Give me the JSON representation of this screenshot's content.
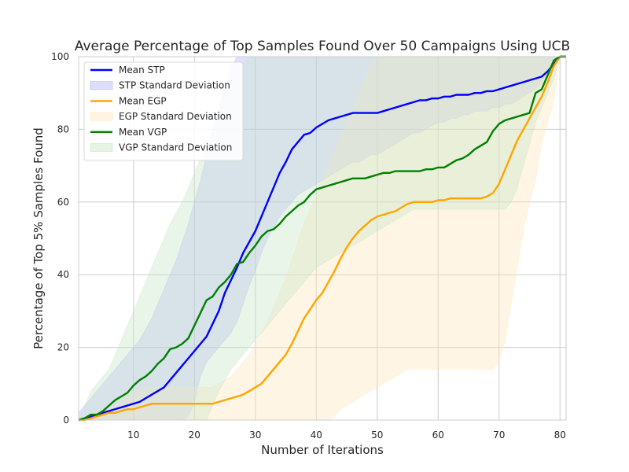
{
  "chart_data": {
    "type": "line",
    "title": "Average Percentage of Top Samples Found Over 50 Campaigns Using UCB",
    "xlabel": "Number of Iterations",
    "ylabel": "Percentage of Top 5% Samples Found",
    "xlim": [
      1,
      81
    ],
    "ylim": [
      0,
      100
    ],
    "xticks": [
      10,
      20,
      30,
      40,
      50,
      60,
      70,
      80
    ],
    "yticks": [
      0,
      20,
      40,
      60,
      80,
      100
    ],
    "grid": true,
    "legend_position": "top-left",
    "x": [
      1,
      2,
      3,
      4,
      5,
      6,
      7,
      8,
      9,
      10,
      11,
      12,
      13,
      14,
      15,
      16,
      17,
      18,
      19,
      20,
      21,
      22,
      23,
      24,
      25,
      26,
      27,
      28,
      29,
      30,
      31,
      32,
      33,
      34,
      35,
      36,
      37,
      38,
      39,
      40,
      41,
      42,
      43,
      44,
      45,
      46,
      47,
      48,
      49,
      50,
      51,
      52,
      53,
      54,
      55,
      56,
      57,
      58,
      59,
      60,
      61,
      62,
      63,
      64,
      65,
      66,
      67,
      68,
      69,
      70,
      71,
      72,
      73,
      74,
      75,
      76,
      77,
      78,
      79,
      80,
      81
    ],
    "series": [
      {
        "name": "Mean STP",
        "color": "#0000ff",
        "values": [
          0,
          0.5,
          1,
          1.5,
          2,
          2.5,
          3,
          3.5,
          4,
          4.5,
          5,
          6,
          7,
          8,
          9,
          11,
          13,
          15,
          17,
          19,
          21,
          23,
          26.5,
          30,
          35,
          38.5,
          42,
          46,
          49,
          52,
          56,
          60,
          64,
          68,
          71,
          74.5,
          76.5,
          78.5,
          79,
          80.5,
          81.5,
          82.5,
          83,
          83.5,
          84,
          84.5,
          84.5,
          84.5,
          84.5,
          84.5,
          85,
          85.5,
          86,
          86.5,
          87,
          87.5,
          88,
          88,
          88.5,
          88.5,
          89,
          89,
          89.5,
          89.5,
          89.5,
          90,
          90,
          90.5,
          90.5,
          91,
          91.5,
          92,
          92.5,
          93,
          93.5,
          94,
          94.5,
          96,
          98,
          100,
          100
        ]
      },
      {
        "name": "STP Standard Deviation",
        "color": "#b4b4ff",
        "lower": [
          0,
          0,
          0,
          0,
          0,
          0,
          0,
          0,
          0,
          0,
          0,
          0,
          0,
          0,
          0,
          0,
          0,
          0,
          1,
          5,
          12,
          16,
          18,
          20,
          22,
          24,
          27,
          32,
          37,
          41,
          46,
          50,
          53,
          56,
          58,
          60,
          62,
          63,
          64,
          65,
          66,
          67,
          68,
          69,
          70,
          71,
          71,
          72,
          73,
          73,
          74,
          75,
          76,
          77,
          78,
          79,
          79,
          80,
          81,
          82,
          82,
          83,
          83,
          84,
          84,
          85,
          85,
          85,
          86,
          86,
          87,
          87,
          88,
          89,
          90,
          91,
          93,
          96,
          98,
          100,
          100
        ],
        "upper": [
          2,
          4,
          6,
          8,
          10,
          12,
          14,
          16,
          18,
          20,
          22,
          25,
          28,
          32,
          36,
          40,
          44,
          49,
          54,
          60,
          66,
          73,
          80,
          86,
          92,
          97,
          100,
          100,
          100,
          100,
          100,
          100,
          100,
          100,
          100,
          100,
          100,
          100,
          100,
          100,
          100,
          100,
          100,
          100,
          100,
          100,
          100,
          100,
          100,
          100,
          100,
          100,
          100,
          100,
          100,
          100,
          100,
          100,
          100,
          100,
          100,
          100,
          100,
          100,
          100,
          100,
          100,
          100,
          100,
          100,
          100,
          100,
          100,
          100,
          100,
          100,
          100,
          100,
          100,
          100,
          100
        ]
      },
      {
        "name": "Mean EGP",
        "color": "#ffa500",
        "values": [
          0,
          0,
          0.5,
          1,
          1.5,
          2,
          2,
          2.5,
          3,
          3,
          3.5,
          4,
          4.5,
          4.5,
          4.5,
          4.5,
          4.5,
          4.5,
          4.5,
          4.5,
          4.5,
          4.5,
          4.5,
          5,
          5.5,
          6,
          6.5,
          7,
          8,
          9,
          10,
          12,
          14,
          16,
          18,
          21,
          24.5,
          28,
          30.5,
          33,
          35,
          38,
          41,
          44.5,
          47.5,
          50,
          52,
          53.5,
          55,
          56,
          56.5,
          57,
          57.5,
          58.5,
          59.5,
          60,
          60,
          60,
          60,
          60.5,
          60.5,
          61,
          61,
          61,
          61,
          61,
          61,
          61.5,
          62.5,
          65,
          69,
          73,
          77,
          80,
          83,
          86,
          89,
          93,
          97.5,
          100,
          100
        ]
      },
      {
        "name": "EGP Standard Deviation",
        "color": "#ffe7bf",
        "lower": [
          0,
          0,
          0,
          0,
          0,
          0,
          0,
          0,
          0,
          0,
          0,
          0,
          0,
          0,
          0,
          0,
          0,
          0,
          0,
          0,
          0,
          0,
          0,
          0,
          0,
          0,
          0,
          0,
          0,
          0,
          0,
          0,
          0,
          0,
          0,
          0,
          0,
          0,
          0,
          0,
          0,
          0,
          1,
          3,
          4,
          5,
          6,
          7,
          8,
          9,
          10,
          11,
          12,
          13,
          14,
          14,
          14,
          14,
          14,
          14,
          14,
          14,
          14,
          14,
          14,
          14,
          14,
          14,
          14,
          16,
          22,
          32,
          42,
          52,
          60,
          66,
          76,
          82,
          88,
          100,
          100
        ],
        "upper": [
          0,
          0,
          1,
          2,
          3,
          4,
          5,
          6,
          7,
          8,
          8,
          9,
          9,
          9,
          9,
          9,
          9,
          9,
          9,
          9,
          9,
          9,
          9,
          10,
          11,
          12,
          14,
          16,
          18,
          21,
          24,
          27,
          31,
          35,
          39,
          44,
          49,
          54,
          58,
          62,
          66,
          70,
          74,
          78,
          82,
          86,
          90,
          94,
          98,
          100,
          100,
          100,
          100,
          100,
          100,
          100,
          100,
          100,
          100,
          100,
          100,
          100,
          100,
          100,
          100,
          100,
          100,
          100,
          100,
          100,
          100,
          100,
          100,
          100,
          100,
          100,
          100,
          100,
          100,
          100,
          100
        ]
      },
      {
        "name": "Mean VGP",
        "color": "#008000",
        "values": [
          0,
          0.5,
          1.5,
          1.5,
          2.5,
          4,
          5.5,
          6.5,
          7.5,
          9.5,
          11,
          12,
          13.5,
          15.5,
          17,
          19.5,
          20,
          21,
          22.5,
          26,
          29.5,
          33,
          34,
          36.5,
          38,
          40,
          43,
          43.5,
          46,
          48,
          50.5,
          52,
          52.5,
          54,
          56,
          57.5,
          59,
          60,
          62,
          63.5,
          64,
          64.5,
          65,
          65.5,
          66,
          66.5,
          66.5,
          66.5,
          67,
          67.5,
          68,
          68,
          68.5,
          68.5,
          68.5,
          68.5,
          68.5,
          69,
          69,
          69.5,
          69.5,
          70.5,
          71.5,
          72,
          73,
          74.5,
          75.5,
          76.5,
          79.5,
          81.5,
          82.5,
          83,
          83.5,
          84,
          84.5,
          90,
          91,
          95,
          99,
          100,
          100
        ]
      },
      {
        "name": "VGP Standard Deviation",
        "color": "#c8e6c8",
        "lower": [
          0,
          0,
          0,
          0,
          0,
          0,
          0,
          0,
          0,
          0,
          0,
          0,
          0,
          0,
          0,
          0,
          0,
          0,
          0,
          0,
          0,
          0,
          4,
          8,
          11,
          14,
          16,
          18,
          20,
          22,
          24,
          26,
          28,
          30,
          32,
          34,
          36,
          38,
          40,
          42,
          43,
          44,
          45,
          46,
          47,
          48,
          49,
          50,
          51,
          52,
          53,
          54,
          55,
          56,
          57,
          58,
          58,
          58,
          58,
          58,
          58,
          58,
          58,
          58,
          58,
          58,
          58,
          58,
          58,
          58,
          58,
          60,
          64,
          70,
          76,
          82,
          86,
          90,
          94,
          100,
          100
        ],
        "upper": [
          0,
          4,
          8,
          10,
          12,
          14,
          18,
          22,
          26,
          30,
          34,
          38,
          42,
          46,
          50,
          54,
          57,
          60,
          64,
          68,
          72,
          76,
          80,
          84,
          88,
          92,
          95,
          98,
          100,
          100,
          100,
          100,
          100,
          100,
          100,
          100,
          100,
          100,
          100,
          100,
          100,
          100,
          100,
          100,
          100,
          100,
          100,
          100,
          100,
          100,
          100,
          100,
          100,
          100,
          100,
          100,
          100,
          100,
          100,
          100,
          100,
          100,
          100,
          100,
          100,
          100,
          100,
          100,
          100,
          100,
          100,
          100,
          100,
          100,
          100,
          100,
          100,
          100,
          100,
          100,
          100
        ]
      }
    ],
    "legend": [
      {
        "label": "Mean STP",
        "kind": "line",
        "series": 0
      },
      {
        "label": "STP Standard Deviation",
        "kind": "patch",
        "series": 1
      },
      {
        "label": "Mean EGP",
        "kind": "line",
        "series": 2
      },
      {
        "label": "EGP Standard Deviation",
        "kind": "patch",
        "series": 3
      },
      {
        "label": "Mean VGP",
        "kind": "line",
        "series": 4
      },
      {
        "label": "VGP Standard Deviation",
        "kind": "patch",
        "series": 5
      }
    ]
  }
}
